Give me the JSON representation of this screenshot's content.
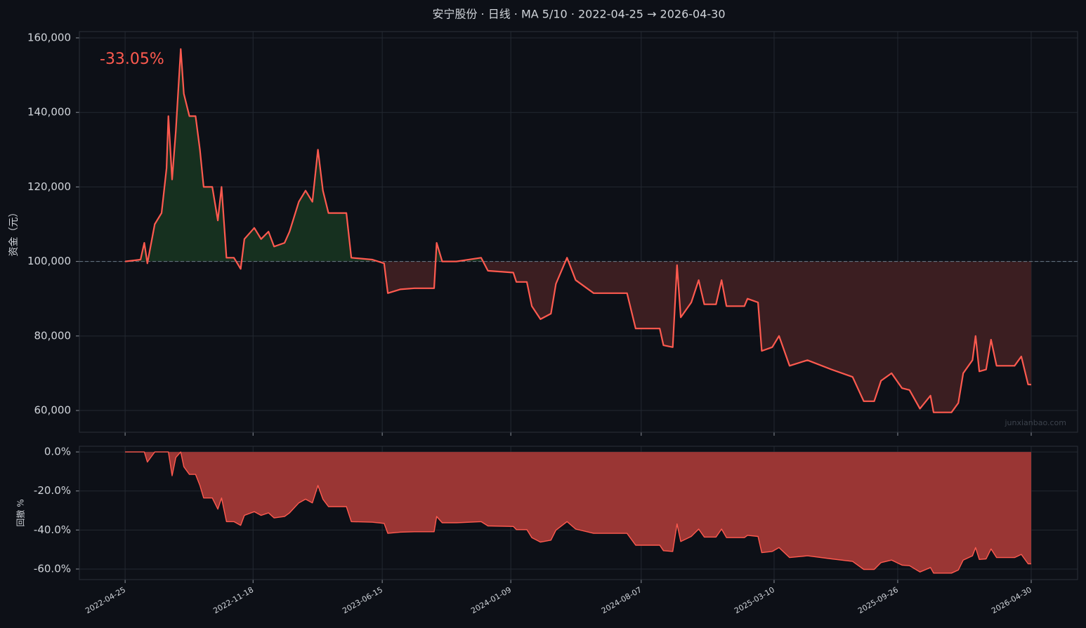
{
  "chart_data": [
    {
      "type": "area",
      "title": "安宁股份 · 日线 · MA 5/10 · 2022-04-25 → 2026-04-30",
      "ylabel": "资金（元）",
      "annotation": "-33.05%",
      "watermark": "junxianbao.com",
      "baseline": 100000,
      "grid": true,
      "color": "#ff5a4f",
      "fill_above": "#16301f",
      "fill_below": "#3b1e21",
      "x": [
        "2022-04-25",
        "2022-05-20",
        "2022-05-26",
        "2022-05-31",
        "2022-06-12",
        "2022-06-23",
        "2022-07-01",
        "2022-07-04",
        "2022-07-10",
        "2022-07-16",
        "2022-07-24",
        "2022-07-29",
        "2022-08-07",
        "2022-08-17",
        "2022-08-24",
        "2022-08-30",
        "2022-09-13",
        "2022-09-22",
        "2022-09-28",
        "2022-10-06",
        "2022-10-18",
        "2022-10-29",
        "2022-11-04",
        "2022-11-20",
        "2022-12-01",
        "2022-12-13",
        "2022-12-22",
        "2023-01-08",
        "2023-01-16",
        "2023-01-31",
        "2023-02-11",
        "2023-02-22",
        "2023-03-03",
        "2023-03-11",
        "2023-03-20",
        "2023-04-18",
        "2023-04-26",
        "2023-05-30",
        "2023-06-18",
        "2023-06-24",
        "2023-07-14",
        "2023-08-06",
        "2023-09-07",
        "2023-09-11",
        "2023-09-20",
        "2023-10-13",
        "2023-11-22",
        "2023-12-03",
        "2024-01-13",
        "2024-01-18",
        "2024-02-04",
        "2024-02-12",
        "2024-02-26",
        "2024-03-14",
        "2024-03-22",
        "2024-04-09",
        "2024-04-23",
        "2024-05-22",
        "2024-07-15",
        "2024-07-29",
        "2024-09-06",
        "2024-09-12",
        "2024-09-27",
        "2024-10-04",
        "2024-10-10",
        "2024-10-27",
        "2024-11-08",
        "2024-11-17",
        "2024-12-06",
        "2024-12-15",
        "2024-12-23",
        "2025-01-21",
        "2025-01-26",
        "2025-02-12",
        "2025-02-18",
        "2025-03-07",
        "2025-03-18",
        "2025-04-04",
        "2025-05-03",
        "2025-06-11",
        "2025-07-15",
        "2025-08-02",
        "2025-08-19",
        "2025-08-30",
        "2025-09-16",
        "2025-10-03",
        "2025-10-15",
        "2025-11-01",
        "2025-11-18",
        "2025-11-23",
        "2025-12-22",
        "2026-01-02",
        "2026-01-10",
        "2026-01-25",
        "2026-01-30",
        "2026-02-05",
        "2026-02-16",
        "2026-02-24",
        "2026-03-05",
        "2026-04-03",
        "2026-04-14",
        "2026-04-25",
        "2026-04-30"
      ],
      "series": [
        {
          "color": "#ff5a4f",
          "values": [
            100000,
            100500,
            105000,
            99500,
            110000,
            113000,
            125000,
            139000,
            122000,
            135000,
            157000,
            145000,
            139000,
            139000,
            130000,
            120000,
            120000,
            111000,
            120000,
            101000,
            101000,
            98000,
            106000,
            109000,
            106000,
            108000,
            104000,
            105000,
            108000,
            116000,
            119000,
            116000,
            130000,
            119000,
            113000,
            113000,
            101000,
            100500,
            99500,
            91500,
            92500,
            92800,
            92800,
            105000,
            100000,
            100000,
            101000,
            97500,
            97000,
            94500,
            94500,
            88000,
            84500,
            86000,
            94000,
            101000,
            95000,
            91500,
            91500,
            82000,
            82000,
            77500,
            77000,
            99000,
            85000,
            89000,
            95000,
            88500,
            88500,
            95000,
            88000,
            88000,
            90000,
            89000,
            76000,
            77000,
            80000,
            72000,
            73500,
            71000,
            69000,
            62500,
            62500,
            68000,
            70000,
            66000,
            65500,
            60500,
            64000,
            59500,
            59500,
            62000,
            70000,
            73500,
            80000,
            70500,
            71000,
            79000,
            72000,
            72000,
            74500,
            67000,
            66950
          ]
        }
      ],
      "xlim": [
        "2022-02-10",
        "2026-07-14"
      ],
      "xticks": [
        "2022-04-25",
        "2022-11-18",
        "2023-06-15",
        "2024-01-09",
        "2024-08-07",
        "2025-03-10",
        "2025-09-26",
        "2026-04-30"
      ],
      "ylim": [
        54170,
        161690
      ],
      "yticks": [
        {
          "value": 60000,
          "label": "60,000"
        },
        {
          "value": 80000,
          "label": "80,000"
        },
        {
          "value": 100000,
          "label": "100,000"
        },
        {
          "value": 120000,
          "label": "120,000"
        },
        {
          "value": 140000,
          "label": "140,000"
        },
        {
          "value": 160000,
          "label": "160,000"
        }
      ]
    },
    {
      "type": "area",
      "ylabel": "回撤 %",
      "grid": true,
      "color": "#ff5a4f",
      "fill": "#9a3634",
      "x": [
        "2022-04-25",
        "2022-05-20",
        "2022-05-26",
        "2022-05-31",
        "2022-06-12",
        "2022-06-23",
        "2022-07-01",
        "2022-07-04",
        "2022-07-10",
        "2022-07-16",
        "2022-07-24",
        "2022-07-29",
        "2022-08-07",
        "2022-08-17",
        "2022-08-24",
        "2022-08-30",
        "2022-09-13",
        "2022-09-22",
        "2022-09-28",
        "2022-10-06",
        "2022-10-18",
        "2022-10-29",
        "2022-11-04",
        "2022-11-20",
        "2022-12-01",
        "2022-12-13",
        "2022-12-22",
        "2023-01-08",
        "2023-01-16",
        "2023-01-31",
        "2023-02-11",
        "2023-02-22",
        "2023-03-03",
        "2023-03-11",
        "2023-03-20",
        "2023-04-18",
        "2023-04-26",
        "2023-05-30",
        "2023-06-18",
        "2023-06-24",
        "2023-07-14",
        "2023-08-06",
        "2023-09-07",
        "2023-09-11",
        "2023-09-20",
        "2023-10-13",
        "2023-11-22",
        "2023-12-03",
        "2024-01-13",
        "2024-01-18",
        "2024-02-04",
        "2024-02-12",
        "2024-02-26",
        "2024-03-14",
        "2024-03-22",
        "2024-04-09",
        "2024-04-23",
        "2024-05-22",
        "2024-07-15",
        "2024-07-29",
        "2024-09-06",
        "2024-09-12",
        "2024-09-27",
        "2024-10-04",
        "2024-10-10",
        "2024-10-27",
        "2024-11-08",
        "2024-11-17",
        "2024-12-06",
        "2024-12-15",
        "2024-12-23",
        "2025-01-21",
        "2025-01-26",
        "2025-02-12",
        "2025-02-18",
        "2025-03-07",
        "2025-03-18",
        "2025-04-04",
        "2025-05-03",
        "2025-06-11",
        "2025-07-15",
        "2025-08-02",
        "2025-08-19",
        "2025-08-30",
        "2025-09-16",
        "2025-10-03",
        "2025-10-15",
        "2025-11-01",
        "2025-11-18",
        "2025-11-23",
        "2025-12-22",
        "2026-01-02",
        "2026-01-10",
        "2026-01-25",
        "2026-01-30",
        "2026-02-05",
        "2026-02-16",
        "2026-02-24",
        "2026-03-05",
        "2026-04-03",
        "2026-04-14",
        "2026-04-25",
        "2026-04-30"
      ],
      "series": [
        {
          "color": "#ff5a4f",
          "values": [
            0,
            0,
            0,
            -5.2,
            0,
            0,
            0,
            0,
            -12.2,
            -2.9,
            0,
            -7.6,
            -11.5,
            -11.5,
            -17.2,
            -23.6,
            -23.6,
            -29.3,
            -23.6,
            -35.7,
            -35.7,
            -37.6,
            -32.5,
            -30.6,
            -32.5,
            -31.2,
            -33.8,
            -33.1,
            -31.2,
            -26.1,
            -24.2,
            -26.1,
            -17.2,
            -24.2,
            -28.0,
            -28.0,
            -35.7,
            -36.0,
            -36.6,
            -41.7,
            -41.1,
            -40.9,
            -40.9,
            -33.1,
            -36.3,
            -36.3,
            -35.7,
            -37.9,
            -38.2,
            -39.8,
            -39.8,
            -43.9,
            -46.2,
            -45.2,
            -40.1,
            -35.7,
            -39.5,
            -41.7,
            -41.7,
            -47.8,
            -47.8,
            -50.6,
            -51.0,
            -36.9,
            -45.9,
            -43.3,
            -39.5,
            -43.6,
            -43.6,
            -39.5,
            -43.9,
            -43.9,
            -42.7,
            -43.3,
            -51.6,
            -51.0,
            -49.0,
            -54.1,
            -53.2,
            -54.8,
            -56.1,
            -60.2,
            -60.2,
            -56.7,
            -55.4,
            -58.0,
            -58.3,
            -61.5,
            -59.2,
            -62.1,
            -62.1,
            -60.5,
            -55.4,
            -53.2,
            -49.0,
            -55.1,
            -54.8,
            -49.7,
            -54.1,
            -54.1,
            -52.5,
            -57.3,
            -57.3
          ]
        }
      ],
      "xlim": [
        "2022-02-10",
        "2026-07-14"
      ],
      "xticks": [
        "2022-04-25",
        "2022-11-18",
        "2023-06-15",
        "2024-01-09",
        "2024-08-07",
        "2025-03-10",
        "2025-09-26",
        "2026-04-30"
      ],
      "ylim": [
        -65.4,
        2.9
      ],
      "yticks": [
        {
          "value": -60,
          "label": "-60.0%"
        },
        {
          "value": -40,
          "label": "-40.0%"
        },
        {
          "value": -20,
          "label": "-20.0%"
        },
        {
          "value": 0,
          "label": "0.0%"
        }
      ]
    }
  ]
}
